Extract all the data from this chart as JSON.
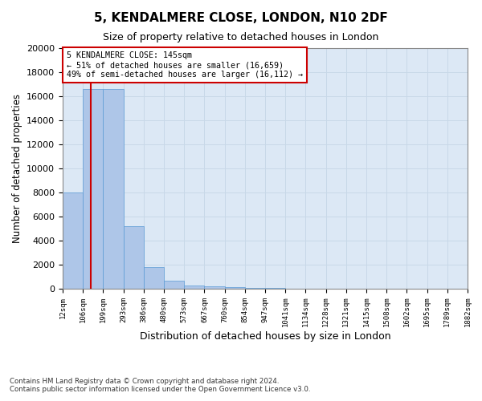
{
  "title": "5, KENDALMERE CLOSE, LONDON, N10 2DF",
  "subtitle": "Size of property relative to detached houses in London",
  "xlabel": "Distribution of detached houses by size in London",
  "ylabel": "Number of detached properties",
  "footnote1": "Contains HM Land Registry data © Crown copyright and database right 2024.",
  "footnote2": "Contains public sector information licensed under the Open Government Licence v3.0.",
  "bar_heights": [
    8000,
    16600,
    16600,
    5200,
    1800,
    700,
    250,
    170,
    120,
    90,
    60,
    0,
    0,
    0,
    0,
    0,
    0,
    0,
    0,
    0
  ],
  "bar_color": "#aec6e8",
  "bar_edge_color": "#5b9bd5",
  "grid_color": "#c8d8e8",
  "vline_bin": 1.4,
  "property_name": "5 KENDALMERE CLOSE: 145sqm",
  "annotation_line1": "← 51% of detached houses are smaller (16,659)",
  "annotation_line2": "49% of semi-detached houses are larger (16,112) →",
  "vline_color": "#cc0000",
  "annotation_box_color": "#cc0000",
  "ylim": [
    0,
    20000
  ],
  "yticks": [
    0,
    2000,
    4000,
    6000,
    8000,
    10000,
    12000,
    14000,
    16000,
    18000,
    20000
  ],
  "tick_labels": [
    "12sqm",
    "106sqm",
    "199sqm",
    "293sqm",
    "386sqm",
    "480sqm",
    "573sqm",
    "667sqm",
    "760sqm",
    "854sqm",
    "947sqm",
    "1041sqm",
    "1134sqm",
    "1228sqm",
    "1321sqm",
    "1415sqm",
    "1508sqm",
    "1602sqm",
    "1695sqm",
    "1789sqm",
    "1882sqm"
  ],
  "background_color": "#dce8f5",
  "num_bins": 20
}
